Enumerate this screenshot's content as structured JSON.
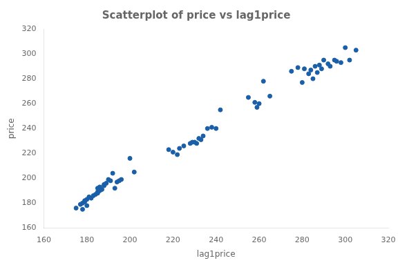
{
  "chart_data": {
    "type": "scatter",
    "title": "Scatterplot of price vs lag1price",
    "xlabel": "lag1price",
    "ylabel": "price",
    "x": [
      175,
      177,
      178,
      178,
      179,
      179,
      180,
      180,
      181,
      182,
      183,
      184,
      185,
      185,
      185,
      186,
      186,
      187,
      188,
      188,
      189,
      190,
      191,
      192,
      193,
      194,
      195,
      196,
      200,
      202,
      218,
      220,
      222,
      223,
      225,
      228,
      229,
      230,
      231,
      232,
      233,
      234,
      236,
      238,
      240,
      242,
      255,
      258,
      259,
      260,
      262,
      265,
      275,
      278,
      280,
      281,
      283,
      284,
      285,
      286,
      287,
      288,
      289,
      290,
      292,
      293,
      295,
      296,
      298,
      300,
      302,
      305
    ],
    "values": [
      176,
      179,
      175,
      180,
      181,
      182,
      178,
      183,
      185,
      184,
      186,
      187,
      188,
      189,
      192,
      190,
      193,
      191,
      194,
      195,
      196,
      199,
      198,
      204,
      192,
      197,
      198,
      199,
      216,
      205,
      223,
      221,
      219,
      224,
      226,
      228,
      229,
      229,
      228,
      232,
      231,
      234,
      240,
      241,
      240,
      255,
      265,
      261,
      257,
      260,
      278,
      266,
      286,
      289,
      277,
      288,
      284,
      287,
      280,
      290,
      285,
      291,
      288,
      295,
      292,
      290,
      295,
      294,
      293,
      305,
      295,
      303
    ],
    "color": "#1a5fa8",
    "xlim": [
      160,
      320
    ],
    "ylim": [
      160,
      320
    ],
    "xticks": [
      160,
      180,
      200,
      220,
      240,
      260,
      280,
      300,
      320
    ],
    "yticks": [
      160,
      180,
      200,
      220,
      240,
      260,
      280,
      300,
      320
    ],
    "grid": false,
    "legend": false
  }
}
